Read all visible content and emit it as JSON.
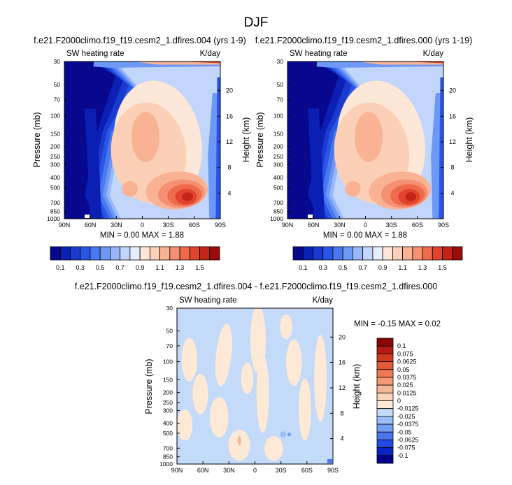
{
  "page_title": "DJF",
  "colors": {
    "palette": [
      "#08088f",
      "#0b1fb5",
      "#1a3ad0",
      "#2a56e6",
      "#4a78f0",
      "#6e98f5",
      "#97b7f8",
      "#c2d6fb",
      "#e6eefd",
      "#fde7d8",
      "#fcd0b6",
      "#f9b394",
      "#f69072",
      "#ef6a4b",
      "#e2432c",
      "#c42318",
      "#9a0c0c"
    ],
    "diff_palette": [
      "#00008c",
      "#0a24c4",
      "#2249e3",
      "#4a76ef",
      "#739ef5",
      "#9bc0f9",
      "#c3daf9",
      "#fde9d6",
      "#fbd3b9",
      "#f8b797",
      "#f49a76",
      "#ee7a55",
      "#e45a37",
      "#d23a20",
      "#b31b12",
      "#8c0707"
    ],
    "frame": "#000000",
    "background": "#ffffff"
  },
  "chart_data": [
    {
      "type": "heatmap",
      "name": "panel-left",
      "title": "f.e21.F2000climo.f19_f19.cesm2_1.dfires.004 (yrs 1-9)",
      "left_subtitle": "SW heating rate",
      "right_subtitle": "K/day",
      "ylabel": "Pressure (mb)",
      "ylabel_right": "Height (km)",
      "x_ticks": [
        "90N",
        "60N",
        "30N",
        "0",
        "30S",
        "60S",
        "90S"
      ],
      "x_tick_values": [
        90,
        60,
        30,
        0,
        -30,
        -60,
        -90
      ],
      "y_ticks": [
        "30",
        "50",
        "70",
        "100",
        "150",
        "200",
        "250",
        "300",
        "400",
        "500",
        "700",
        "850",
        "1000"
      ],
      "y_tick_values": [
        30,
        50,
        70,
        100,
        150,
        200,
        250,
        300,
        400,
        500,
        700,
        850,
        1000
      ],
      "height_ticks": [
        "20",
        "16",
        "12",
        "8",
        "4"
      ],
      "height_tick_values": [
        20,
        16,
        12,
        8,
        4
      ],
      "ylim": [
        30,
        1000
      ],
      "xlim": [
        90,
        -90
      ],
      "minmax_text": "MIN =  0.00  MAX =  1.88",
      "min": 0.0,
      "max": 1.88,
      "levels": [
        0.1,
        0.2,
        0.3,
        0.4,
        0.5,
        0.6,
        0.7,
        0.8,
        0.9,
        1.0,
        1.1,
        1.2,
        1.3,
        1.4,
        1.5,
        1.6
      ],
      "colorbar_labels": [
        "0.1",
        "0.3",
        "0.5",
        "0.7",
        "0.9",
        "1.1",
        "1.3",
        "1.5"
      ]
    },
    {
      "type": "heatmap",
      "name": "panel-right",
      "title": "f.e21.F2000climo.f19_f19.cesm2_1.dfires.000 (yrs 1-19)",
      "left_subtitle": "SW heating rate",
      "right_subtitle": "K/day",
      "ylabel": "Pressure (mb)",
      "ylabel_right": "Height (km)",
      "x_ticks": [
        "90N",
        "60N",
        "30N",
        "0",
        "30S",
        "60S",
        "90S"
      ],
      "x_tick_values": [
        90,
        60,
        30,
        0,
        -30,
        -60,
        -90
      ],
      "y_ticks": [
        "30",
        "50",
        "70",
        "100",
        "150",
        "200",
        "250",
        "300",
        "400",
        "500",
        "700",
        "850",
        "1000"
      ],
      "y_tick_values": [
        30,
        50,
        70,
        100,
        150,
        200,
        250,
        300,
        400,
        500,
        700,
        850,
        1000
      ],
      "height_ticks": [
        "20",
        "16",
        "12",
        "8",
        "4"
      ],
      "height_tick_values": [
        20,
        16,
        12,
        8,
        4
      ],
      "ylim": [
        30,
        1000
      ],
      "xlim": [
        90,
        -90
      ],
      "minmax_text": "MIN =  0.00  MAX =  1.88",
      "min": 0.0,
      "max": 1.88,
      "levels": [
        0.1,
        0.2,
        0.3,
        0.4,
        0.5,
        0.6,
        0.7,
        0.8,
        0.9,
        1.0,
        1.1,
        1.2,
        1.3,
        1.4,
        1.5,
        1.6
      ],
      "colorbar_labels": [
        "0.1",
        "0.3",
        "0.5",
        "0.7",
        "0.9",
        "1.1",
        "1.3",
        "1.5"
      ]
    },
    {
      "type": "heatmap",
      "name": "panel-diff",
      "title": "f.e21.F2000climo.f19_f19.cesm2_1.dfires.004 - f.e21.F2000climo.f19_f19.cesm2_1.dfires.000",
      "left_subtitle": "SW heating rate",
      "right_subtitle": "K/day",
      "ylabel": "Pressure (mb)",
      "ylabel_right": "Height (km)",
      "x_ticks": [
        "90N",
        "60N",
        "30N",
        "0",
        "30S",
        "60S",
        "90S"
      ],
      "x_tick_values": [
        90,
        60,
        30,
        0,
        -30,
        -60,
        -90
      ],
      "y_ticks": [
        "30",
        "50",
        "70",
        "100",
        "150",
        "200",
        "250",
        "300",
        "400",
        "500",
        "700",
        "850",
        "1000"
      ],
      "y_tick_values": [
        30,
        50,
        70,
        100,
        150,
        200,
        250,
        300,
        400,
        500,
        700,
        850,
        1000
      ],
      "height_ticks": [
        "20",
        "16",
        "12",
        "8",
        "4"
      ],
      "height_tick_values": [
        20,
        16,
        12,
        8,
        4
      ],
      "ylim": [
        30,
        1000
      ],
      "xlim": [
        90,
        -90
      ],
      "minmax_text": "MIN = -0.15  MAX =  0.02",
      "min": -0.15,
      "max": 0.02,
      "colorbar_labels": [
        "0.1",
        "0.075",
        "0.0625",
        "0.05",
        "0.0375",
        "0.025",
        "0.0125",
        "0",
        "-0.0125",
        "-0.025",
        "-0.0375",
        "-0.05",
        "-0.0625",
        "-0.075",
        "-0.1"
      ]
    }
  ]
}
